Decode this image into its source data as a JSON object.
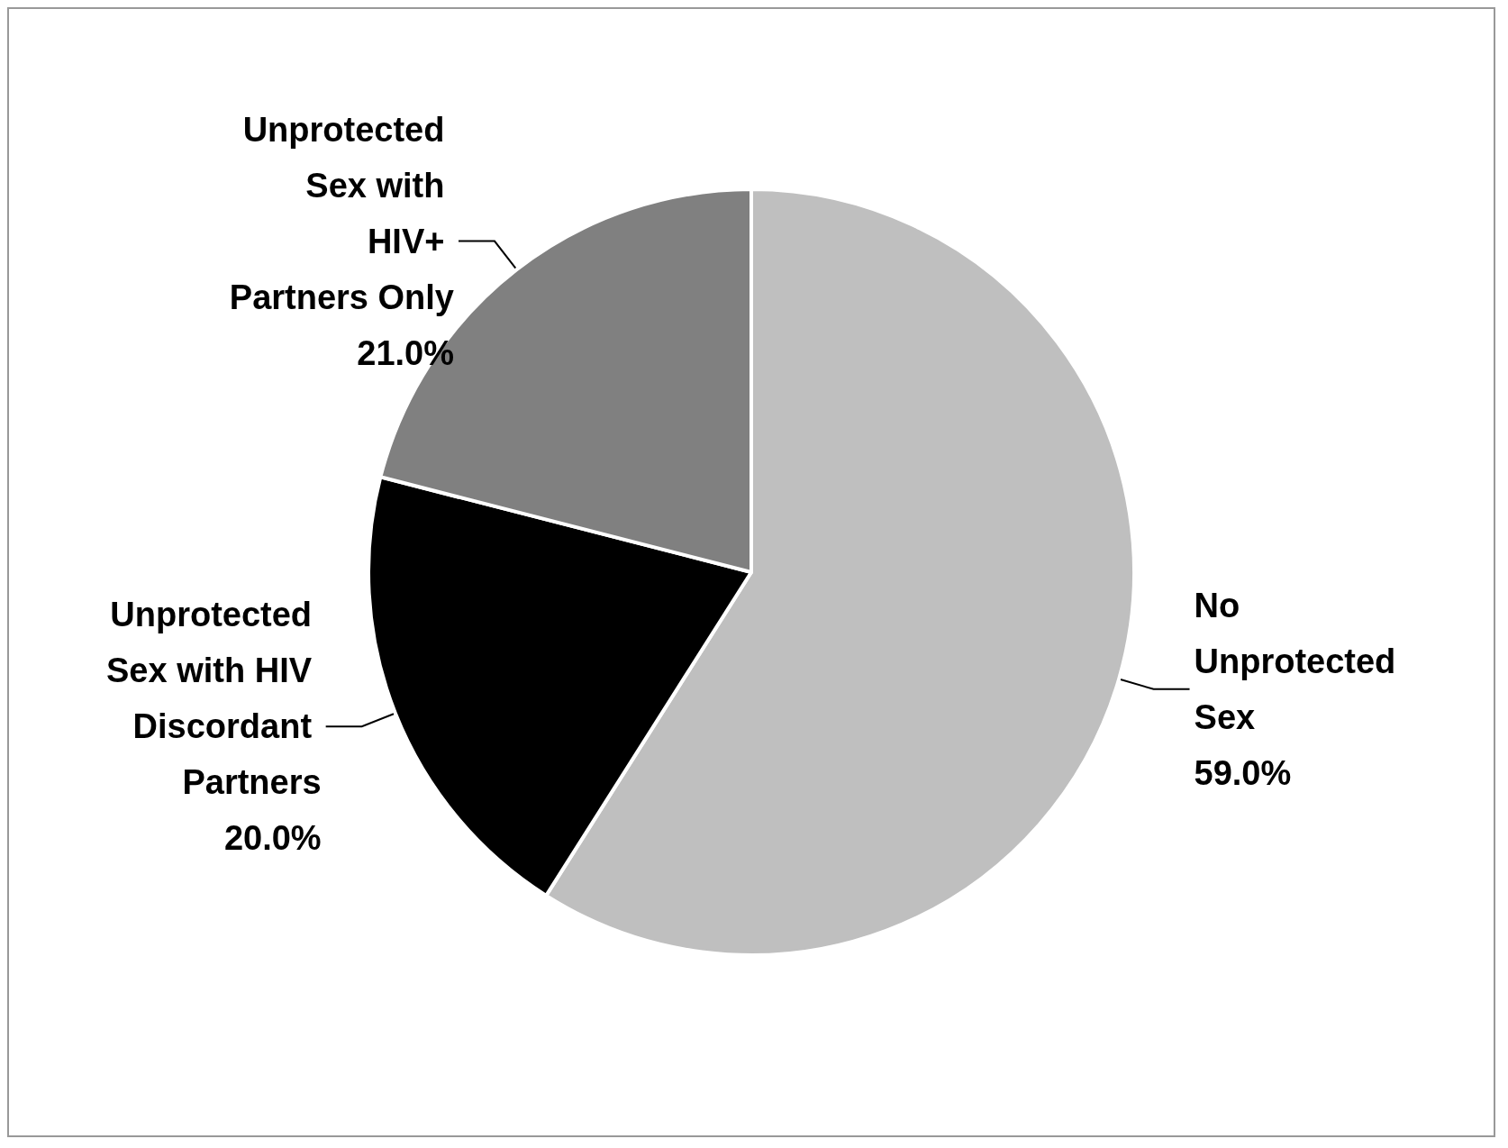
{
  "chart_data": {
    "type": "pie",
    "categories": [
      "No Unprotected Sex",
      "Unprotected Sex with HIV Discordant Partners",
      "Unprotected Sex with HIV+ Partners Only"
    ],
    "values": [
      59,
      20,
      21
    ],
    "colors": [
      "#bfbfbf",
      "#000000",
      "#808080"
    ],
    "value_labels": [
      "59.0%",
      "20.0%",
      "21.0%"
    ]
  }
}
